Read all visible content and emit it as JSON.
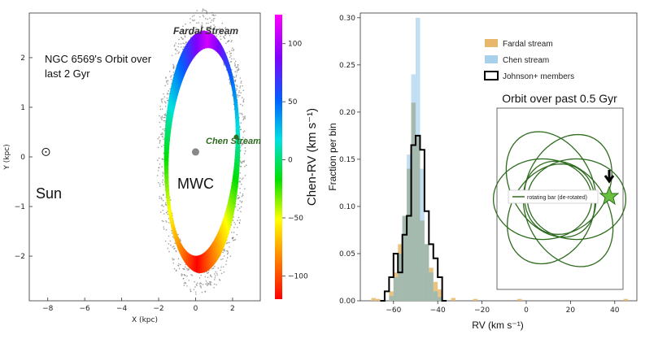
{
  "chart_data": [
    {
      "type": "scatter",
      "title": "NGC 6569's Orbit over last 2 Gyr",
      "title_lines": [
        "NGC 6569's Orbit over",
        "last 2 Gyr"
      ],
      "xlabel": "X (kpc)",
      "ylabel": "Y (kpc)",
      "xlim": [
        -9,
        3.5
      ],
      "ylim": [
        -2.9,
        2.9
      ],
      "xticks": [
        -8,
        -6,
        -4,
        -2,
        0,
        2
      ],
      "yticks": [
        -2,
        -1,
        0,
        1,
        2
      ],
      "annotations": {
        "sun": {
          "label": "Sun",
          "x": -8.1,
          "y": 0.1
        },
        "center": {
          "label": "MWC",
          "x": 0.0,
          "y": 0.1
        },
        "fardal": {
          "label": "Fardal Stream"
        },
        "chen": {
          "label": "Chen Stream",
          "x": 2.2,
          "y": 0.4
        }
      },
      "stream_shape": {
        "center": [
          0.35,
          0.1
        ],
        "radius_x": 2.05,
        "radius_y": 2.45,
        "tilt_deg": -8
      },
      "colorbar": {
        "label": "Chen-RV (km s⁻¹)",
        "range": [
          -120,
          125
        ],
        "ticks": [
          100,
          50,
          0,
          -50,
          -100
        ],
        "colors": [
          "#ff0000",
          "#ff8000",
          "#ffff00",
          "#00e000",
          "#00e0e0",
          "#0060ff",
          "#8000ff",
          "#ff00ff"
        ]
      },
      "grid": false
    },
    {
      "type": "bar",
      "xlabel": "RV (km s⁻¹)",
      "ylabel": "Fraction per bin",
      "xlim": [
        -75,
        50
      ],
      "ylim": [
        0,
        0.305
      ],
      "xticks": [
        -60,
        -40,
        -20,
        0,
        20,
        40
      ],
      "yticks": [
        0.0,
        0.05,
        0.1,
        0.15,
        0.2,
        0.25,
        0.3
      ],
      "bin_width": 2,
      "series": [
        {
          "name": "Fardal stream",
          "color": "#e8b86a",
          "bins": [
            [
              -70,
              0.003
            ],
            [
              -68,
              0.002
            ],
            [
              -62,
              0.01
            ],
            [
              -60,
              0.03
            ],
            [
              -58,
              0.06
            ],
            [
              -56,
              0.09
            ],
            [
              -54,
              0.14
            ],
            [
              -52,
              0.21
            ],
            [
              -50,
              0.175
            ],
            [
              -48,
              0.085
            ],
            [
              -46,
              0.06
            ],
            [
              -44,
              0.035
            ],
            [
              -42,
              0.02
            ],
            [
              -40,
              0.012
            ],
            [
              -34,
              0.003
            ],
            [
              -24,
              0.002
            ],
            [
              -4,
              0.002
            ],
            [
              44,
              0.002
            ]
          ]
        },
        {
          "name": "Chen stream",
          "color": "#a8d0ec",
          "bins": [
            [
              -62,
              0.005
            ],
            [
              -60,
              0.025
            ],
            [
              -58,
              0.05
            ],
            [
              -56,
              0.09
            ],
            [
              -54,
              0.155
            ],
            [
              -52,
              0.24
            ],
            [
              -50,
              0.3
            ],
            [
              -48,
              0.14
            ],
            [
              -46,
              0.06
            ],
            [
              -44,
              0.03
            ],
            [
              -42,
              0.01
            ],
            [
              -40,
              0.004
            ]
          ]
        },
        {
          "name": "Johnson+ members",
          "color": "#000000",
          "edges": [
            [
              -66,
              0
            ],
            [
              -64,
              0.01
            ],
            [
              -62,
              0.025
            ],
            [
              -60,
              0.05
            ],
            [
              -58,
              0.03
            ],
            [
              -56,
              0.07
            ],
            [
              -54,
              0.09
            ],
            [
              -52,
              0.165
            ],
            [
              -50,
              0.175
            ],
            [
              -48,
              0.16
            ],
            [
              -46,
              0.095
            ],
            [
              -44,
              0.06
            ],
            [
              -42,
              0.045
            ],
            [
              -40,
              0.025
            ],
            [
              -38,
              0.0
            ]
          ]
        }
      ],
      "inset": {
        "title": "Orbit over past 0.5 Gyr",
        "legend": "rotating bar (de-rotated)",
        "loop_count": 6,
        "loop_base_radius": 0.55,
        "loop_offset": 0.19,
        "loop_rotation_step_deg": 60,
        "marker": "star"
      },
      "legend_position": "upper-right",
      "grid": false
    }
  ]
}
